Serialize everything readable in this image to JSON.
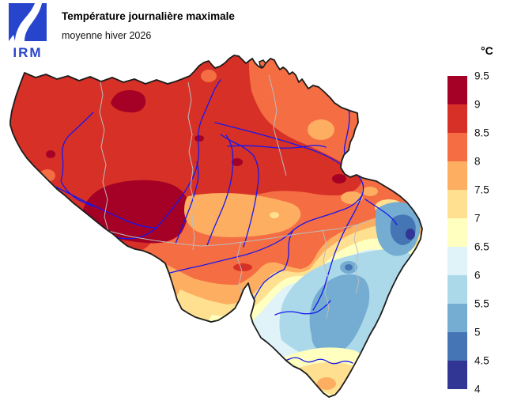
{
  "header": {
    "logo_text": "IRM",
    "title": "Température journalière maximale",
    "subtitle": "moyenne hiver 2026"
  },
  "legend": {
    "unit": "°C",
    "ticks": [
      "9.5",
      "9",
      "8.5",
      "8",
      "7.5",
      "7",
      "6.5",
      "6",
      "5.5",
      "5",
      "4.5",
      "4"
    ],
    "colors": [
      "#a50026",
      "#d73027",
      "#f46d43",
      "#fdae61",
      "#fee090",
      "#ffffbf",
      "#e0f3f8",
      "#abd9e9",
      "#74add1",
      "#4575b4",
      "#313695"
    ]
  },
  "map": {
    "outline_color": "#1c1c1c",
    "river_color": "#1717ee",
    "province_color": "#bcbcbc",
    "background_color": "#ffffff",
    "logo_color": "#2744cc"
  },
  "chart_data": {
    "type": "heatmap",
    "title": "Température journalière maximale",
    "subtitle": "moyenne hiver 2026",
    "unit": "°C",
    "scale_ticks": [
      9.5,
      9,
      8.5,
      8,
      7.5,
      7,
      6.5,
      6,
      5.5,
      5,
      4.5,
      4
    ],
    "bins": [
      {
        "range": [
          9,
          9.5
        ],
        "color": "#a50026"
      },
      {
        "range": [
          8.5,
          9
        ],
        "color": "#d73027"
      },
      {
        "range": [
          8,
          8.5
        ],
        "color": "#f46d43"
      },
      {
        "range": [
          7.5,
          8
        ],
        "color": "#fdae61"
      },
      {
        "range": [
          7,
          7.5
        ],
        "color": "#fee090"
      },
      {
        "range": [
          6.5,
          7
        ],
        "color": "#ffffbf"
      },
      {
        "range": [
          6,
          6.5
        ],
        "color": "#e0f3f8"
      },
      {
        "range": [
          5.5,
          6
        ],
        "color": "#abd9e9"
      },
      {
        "range": [
          5,
          5.5
        ],
        "color": "#74add1"
      },
      {
        "range": [
          4.5,
          5
        ],
        "color": "#4575b4"
      },
      {
        "range": [
          4,
          4.5
        ],
        "color": "#313695"
      }
    ],
    "legend_position": "right",
    "notes": "Filled temperature contour map of Belgium; warmest (9-9.5°C) in the north-west lowlands, coldest (4-4.5°C) on the eastern high ground"
  }
}
